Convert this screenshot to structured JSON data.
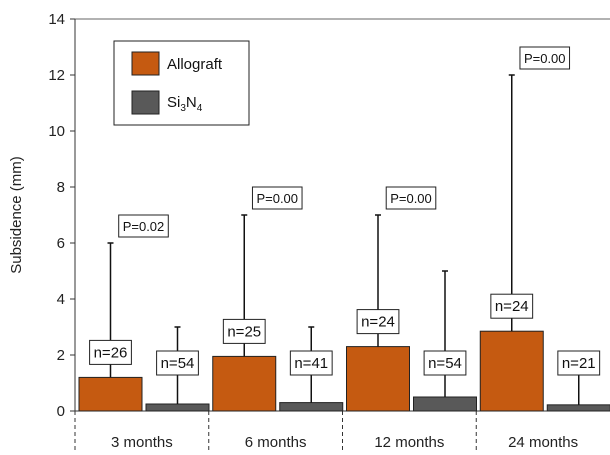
{
  "chart_data": {
    "type": "bar",
    "ylabel": "Subsidence (mm)",
    "ylim": [
      0,
      14
    ],
    "yticks": [
      0,
      2,
      4,
      6,
      8,
      10,
      12,
      14
    ],
    "categories": [
      "3 months",
      "6 months",
      "12 months",
      "24 months"
    ],
    "series": [
      {
        "name": "Allograft",
        "color": "#c55a11",
        "values": [
          1.2,
          1.95,
          2.3,
          2.85
        ],
        "error_upper": [
          6,
          7,
          7,
          12
        ],
        "n_labels": [
          "n=26",
          "n=25",
          "n=24",
          "n=24"
        ]
      },
      {
        "name": "Si3N4",
        "color": "#595959",
        "values": [
          0.25,
          0.3,
          0.5,
          0.22
        ],
        "error_upper": [
          3,
          3,
          5,
          2
        ],
        "n_labels": [
          "n=54",
          "n=41",
          "n=54",
          "n=21"
        ]
      }
    ],
    "p_values": [
      "P=0.02",
      "P=0.00",
      "P=0.00",
      "P=0.00"
    ],
    "legend": {
      "position": "top-left",
      "allograft": "Allograft",
      "si_base": "Si",
      "si_sub1": "3",
      "si_mid": "N",
      "si_sub2": "4"
    },
    "grid": false
  }
}
